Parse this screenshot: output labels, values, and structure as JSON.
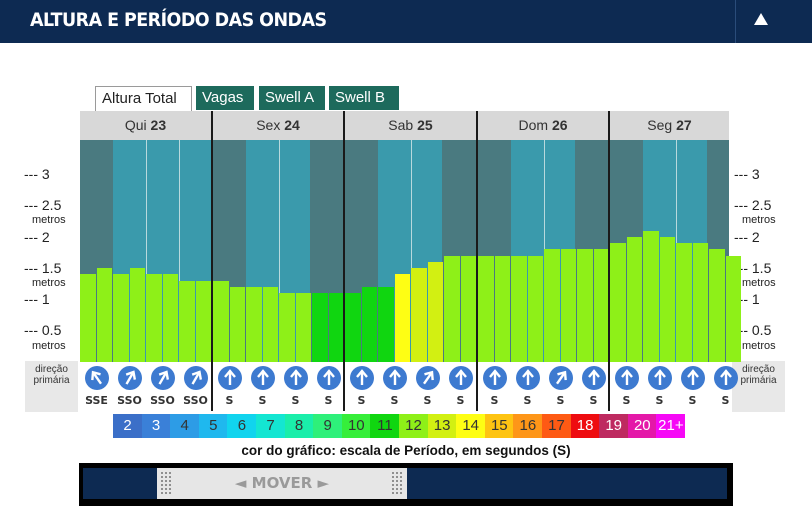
{
  "header": {
    "title": "ALTURA E PERÍODO DAS ONDAS"
  },
  "tabs": [
    {
      "label": "Altura Total",
      "active": true
    },
    {
      "label": "Vagas",
      "active": false
    },
    {
      "label": "Swell A",
      "active": false
    },
    {
      "label": "Swell B",
      "active": false
    }
  ],
  "days": [
    {
      "name": "Qui",
      "num": "23"
    },
    {
      "name": "Sex",
      "num": "24"
    },
    {
      "name": "Sab",
      "num": "25"
    },
    {
      "name": "Dom",
      "num": "26"
    },
    {
      "name": "Seg",
      "num": "27"
    }
  ],
  "axis": {
    "ticks": [
      "3",
      "2.5",
      "2",
      "1.5",
      "1",
      "0.5"
    ],
    "unit": "metros"
  },
  "dir_label": "direção primária",
  "chart_data": {
    "type": "bar",
    "ylabel": "metros",
    "ylim": [
      0,
      3.5
    ],
    "heights": [
      1.4,
      1.5,
      1.4,
      1.5,
      1.4,
      1.4,
      1.3,
      1.3,
      1.3,
      1.2,
      1.2,
      1.2,
      1.1,
      1.1,
      1.1,
      1.1,
      1.1,
      1.2,
      1.2,
      1.4,
      1.5,
      1.6,
      1.7,
      1.7,
      1.7,
      1.7,
      1.7,
      1.7,
      1.8,
      1.8,
      1.8,
      1.8,
      1.9,
      2.0,
      2.1,
      2.0,
      1.9,
      1.9,
      1.8,
      1.7
    ],
    "periods": [
      12,
      12,
      12,
      12,
      12,
      12,
      12,
      12,
      12,
      12,
      12,
      12,
      12,
      12,
      11,
      11,
      11,
      11,
      11,
      14,
      13,
      13,
      12,
      12,
      12,
      12,
      12,
      12,
      12,
      12,
      12,
      12,
      12,
      12,
      12,
      12,
      12,
      12,
      12,
      12
    ],
    "directions": [
      "SSE",
      "SSO",
      "SSO",
      "SSO",
      "S",
      "S",
      "S",
      "S",
      "S",
      "S",
      "S",
      "S",
      "S",
      "S",
      "S",
      "S",
      "S",
      "S",
      "S",
      "S"
    ],
    "arrow_angles": [
      -35,
      30,
      30,
      30,
      0,
      0,
      0,
      0,
      0,
      0,
      35,
      0,
      0,
      0,
      35,
      0,
      0,
      0,
      0,
      0
    ]
  },
  "period_scale": {
    "cells": [
      {
        "label": "2",
        "color": "#3b6fc8"
      },
      {
        "label": "3",
        "color": "#3a80d8"
      },
      {
        "label": "4",
        "color": "#2d9ce6"
      },
      {
        "label": "5",
        "color": "#1fb8ee"
      },
      {
        "label": "6",
        "color": "#11d4ee"
      },
      {
        "label": "7",
        "color": "#14e6d2"
      },
      {
        "label": "8",
        "color": "#1aeeaa"
      },
      {
        "label": "9",
        "color": "#2ef07a"
      },
      {
        "label": "10",
        "color": "#36ee3a"
      },
      {
        "label": "11",
        "color": "#10d610"
      },
      {
        "label": "12",
        "color": "#8ef018"
      },
      {
        "label": "13",
        "color": "#d2f012"
      },
      {
        "label": "14",
        "color": "#fefe14"
      },
      {
        "label": "15",
        "color": "#fec412"
      },
      {
        "label": "16",
        "color": "#fe9618"
      },
      {
        "label": "17",
        "color": "#fe5a14"
      },
      {
        "label": "18",
        "color": "#ee0c10"
      },
      {
        "label": "19",
        "color": "#be2a60"
      },
      {
        "label": "20",
        "color": "#e418a8"
      },
      {
        "label": "21+",
        "color": "#f608f6"
      }
    ],
    "caption": "cor do gráfico: escala de Período, em segundos (S)"
  },
  "scroll": {
    "label": "◄ MOVER ►"
  },
  "colors": {
    "header_bg": "#0d2a52",
    "plot_dark": "#4a7a80",
    "plot_light": "#3a9aac",
    "tab_inactive": "#1d6a5c",
    "arrow": "#3d7ad0"
  }
}
